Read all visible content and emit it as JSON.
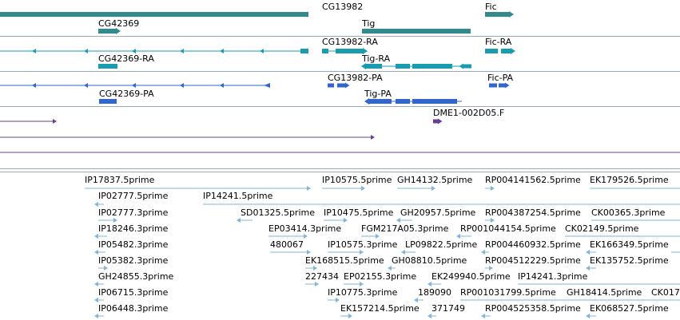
{
  "colors": {
    "gene": "#338a8c",
    "rna": "#1a9cb0",
    "protein": "#3366cc",
    "ests": "#673f8e",
    "est_reads": "#81b6d6",
    "separator": "#9aa9b8"
  },
  "genes": [
    "CG13982",
    "Fic",
    "CG42369",
    "Tig"
  ],
  "transcripts": [
    "CG13982-RA",
    "Fic-RA",
    "CG42369-RA",
    "Tig-RA"
  ],
  "proteins": [
    "CG13982-PA",
    "Fic-PA",
    "CG42369-PA",
    "Tig-PA"
  ],
  "clones": [
    "DME1-002D05.F"
  ],
  "est_labels": [
    "IP17837.5prime",
    "IP10575.5prime",
    "GH14132.5prime",
    "RP004141562.5prime",
    "EK179526.5prime",
    "IP02777.5prime",
    "IP14241.5prime",
    "IP02777.3prime",
    "SD01325.5prime",
    "IP10475.5prime",
    "GH20957.5prime",
    "RP004387254.5prime",
    "CK00365.3prime",
    "IP18246.3prime",
    "EP03414.3prime",
    "FGM217A05.3prime",
    "RP001044154.5prime",
    "CK02149.5prime",
    "IP05482.3prime",
    "480067",
    "IP10575.3prime",
    "LP09822.5prime",
    "RP004460932.5prime",
    "EK166349.5prime",
    "IP05382.3prime",
    "EK168515.5prime",
    "GH08810.5prime",
    "RP004512229.5prime",
    "EK135752.5prime",
    "GH24855.3prime",
    "227434",
    "EP02155.3prime",
    "EK249940.5prime",
    "IP14241.3prime",
    "IP06715.3prime",
    "IP10775.3prime",
    "189090",
    "RP001031799.5prime",
    "GH18414.5prime",
    "CK017",
    "IP06448.3prime",
    "EK157214.5prime",
    "371749",
    "RP004525358.5prime",
    "EK068527.5prime"
  ]
}
